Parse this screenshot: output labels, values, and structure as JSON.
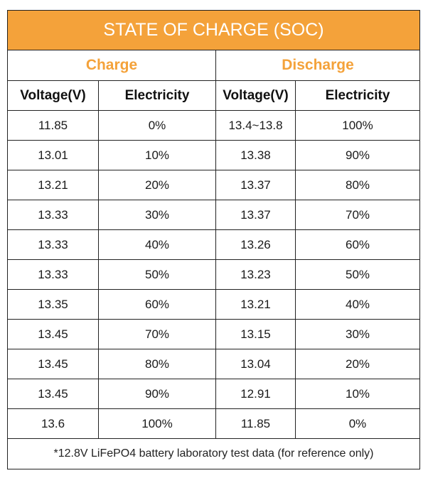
{
  "title": "STATE OF CHARGE (SOC)",
  "groups": {
    "charge": "Charge",
    "discharge": "Discharge"
  },
  "columns": [
    "Voltage(V)",
    "Electricity",
    "Voltage(V)",
    "Electricity"
  ],
  "rows": [
    [
      "11.85",
      "0%",
      "13.4~13.8",
      "100%"
    ],
    [
      "13.01",
      "10%",
      "13.38",
      "90%"
    ],
    [
      "13.21",
      "20%",
      "13.37",
      "80%"
    ],
    [
      "13.33",
      "30%",
      "13.37",
      "70%"
    ],
    [
      "13.33",
      "40%",
      "13.26",
      "60%"
    ],
    [
      "13.33",
      "50%",
      "13.23",
      "50%"
    ],
    [
      "13.35",
      "60%",
      "13.21",
      "40%"
    ],
    [
      "13.45",
      "70%",
      "13.15",
      "30%"
    ],
    [
      "13.45",
      "80%",
      "13.04",
      "20%"
    ],
    [
      "13.45",
      "90%",
      "12.91",
      "10%"
    ],
    [
      "13.6",
      "100%",
      "11.85",
      "0%"
    ]
  ],
  "footnote": "*12.8V LiFePO4 battery laboratory test data (for reference only)",
  "colors": {
    "accent": "#f4a23a",
    "border": "#222222"
  }
}
